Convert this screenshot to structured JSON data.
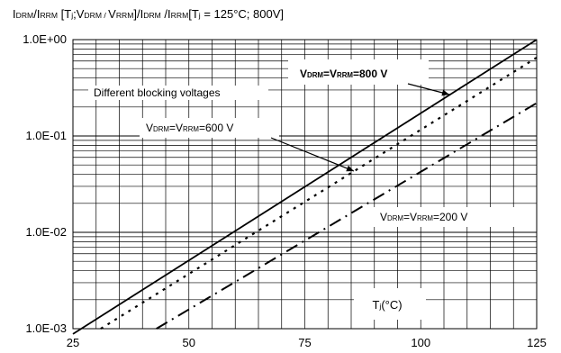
{
  "chart_data": {
    "type": "line",
    "title": {
      "parts": [
        {
          "t": "I"
        },
        {
          "t": "DRM",
          "sub": true
        },
        {
          "t": "/I"
        },
        {
          "t": "RRM",
          "sub": true
        },
        {
          "t": " [T"
        },
        {
          "t": "j",
          "sub": true
        },
        {
          "t": ";V"
        },
        {
          "t": "DRM / ",
          "sub": true
        },
        {
          "t": "V"
        },
        {
          "t": "RRM",
          "sub": true
        },
        {
          "t": "]/I"
        },
        {
          "t": "DRM",
          "sub": true
        },
        {
          "t": " /I"
        },
        {
          "t": "RRM",
          "sub": true
        },
        {
          "t": "[T"
        },
        {
          "t": "j",
          "sub": true
        },
        {
          "t": " = 125°C; 800V]"
        }
      ]
    },
    "xlabel": {
      "parts": [
        {
          "t": "T"
        },
        {
          "t": "j",
          "sub": true
        },
        {
          "t": "(°C)"
        }
      ]
    },
    "xlim": [
      25,
      125
    ],
    "ylim": [
      0.001,
      1
    ],
    "y_scale": "log",
    "x_ticks": [
      25,
      50,
      75,
      100,
      125
    ],
    "x_tick_labels": [
      "25",
      "50",
      "75",
      "100",
      "125"
    ],
    "y_ticks": [
      0.001,
      0.01,
      0.1,
      1
    ],
    "y_tick_labels": [
      "1.0E-03",
      "1.0E-02",
      "1.0E-01",
      "1.0E+00"
    ],
    "grid": true,
    "series": [
      {
        "name_parts": [
          {
            "t": "V"
          },
          {
            "t": "DRM",
            "sub": true
          },
          {
            "t": "=V"
          },
          {
            "t": "RRM",
            "sub": true
          },
          {
            "t": "=800 V"
          }
        ],
        "style": "solid",
        "bold_label": true,
        "x": [
          25,
          125
        ],
        "y": [
          0.00088,
          1.0
        ]
      },
      {
        "name_parts": [
          {
            "t": "V"
          },
          {
            "t": "DRM",
            "sub": true
          },
          {
            "t": "=V"
          },
          {
            "t": "RRM",
            "sub": true
          },
          {
            "t": "=600 V"
          }
        ],
        "style": "dotted",
        "bold_label": false,
        "x": [
          31,
          125
        ],
        "y": [
          0.001,
          0.65
        ]
      },
      {
        "name_parts": [
          {
            "t": "V"
          },
          {
            "t": "DRM",
            "sub": true
          },
          {
            "t": "=V"
          },
          {
            "t": "RRM",
            "sub": true
          },
          {
            "t": "=200 V"
          }
        ],
        "style": "dashdot",
        "bold_label": false,
        "x": [
          43,
          125
        ],
        "y": [
          0.001,
          0.22
        ]
      }
    ],
    "annotations": [
      {
        "text": "Different blocking voltages"
      }
    ]
  }
}
